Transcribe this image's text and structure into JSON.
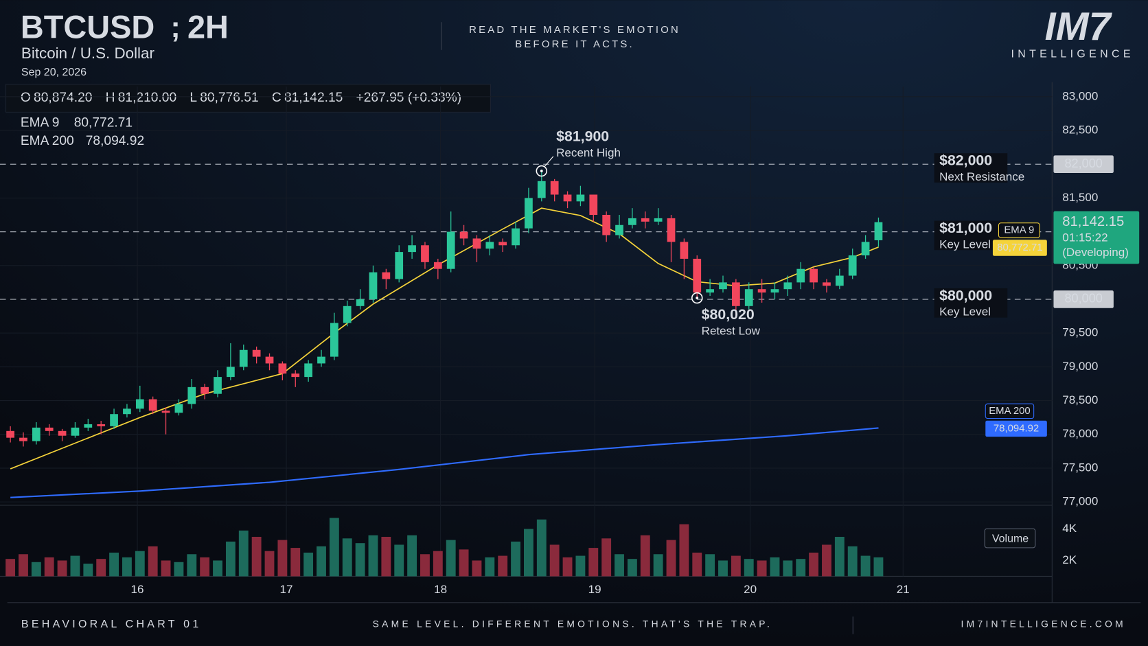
{
  "header": {
    "symbol": "BTCUSD",
    "separator": ";",
    "interval": "2H",
    "subtitle": "Bitcoin / U.S. Dollar",
    "date": "Sep 20, 2026",
    "tagline": [
      "READ THE MARKET'S EMOTION",
      "BEFORE IT ACTS."
    ],
    "logo": "IM7",
    "logo_sub": "INTELLIGENCE",
    "ohlc": [
      {
        "key": "O",
        "value": "80,874.20"
      },
      {
        "key": "H",
        "value": "81,210.00"
      },
      {
        "key": "L",
        "value": "80,776.51"
      },
      {
        "key": "C",
        "value": "81,142.15"
      }
    ],
    "change": "+267.95 (+0.33%)"
  },
  "chart_data": {
    "type": "candlestick",
    "up_color": "#2bc79a",
    "down_color": "#f2465c",
    "volume_up_color": "#1d6b5c",
    "volume_down_color": "#8a2a3c",
    "xlim": [
      -0.8,
      80.4
    ],
    "xticks": [
      {
        "value": 9.8,
        "label": "16"
      },
      {
        "value": 21.3,
        "label": "17"
      },
      {
        "value": 33.2,
        "label": "18"
      },
      {
        "value": 45.1,
        "label": "19"
      },
      {
        "value": 57.1,
        "label": "20"
      },
      {
        "value": 68.9,
        "label": "21"
      }
    ],
    "ylim": [
      76950,
      83150
    ],
    "yticks": [
      {
        "value": 83000,
        "label": "83,000"
      },
      {
        "value": 82500,
        "label": "82,500"
      },
      {
        "value": 81500,
        "label": "81,500"
      },
      {
        "value": 80500,
        "label": "80,500"
      },
      {
        "value": 79500,
        "label": "79,500"
      },
      {
        "value": 79000,
        "label": "79,000"
      },
      {
        "value": 78500,
        "label": "78,500"
      },
      {
        "value": 78000,
        "label": "78,000"
      },
      {
        "value": 77500,
        "label": "77,500"
      },
      {
        "value": 77000,
        "label": "77,000"
      }
    ],
    "grid": true,
    "open": [
      78050,
      77950,
      77900,
      78100,
      78050,
      77980,
      78100,
      78150,
      78120,
      78300,
      78380,
      78520,
      78350,
      78320,
      78450,
      78700,
      78600,
      78850,
      79000,
      79250,
      79150,
      79050,
      78900,
      78850,
      79050,
      79150,
      79650,
      79900,
      80000,
      80400,
      80300,
      80700,
      80800,
      80550,
      80450,
      81000,
      80900,
      80750,
      80850,
      80800,
      81050,
      81500,
      81750,
      81550,
      81450,
      81550,
      81250,
      80950,
      81100,
      81200,
      81150,
      81200,
      80850,
      80600,
      80100,
      80150,
      80250,
      79900,
      80150,
      80100,
      80150,
      80250,
      80450,
      80250,
      80200,
      80350,
      80650,
      80874.2
    ],
    "high": [
      78120,
      78030,
      78180,
      78150,
      78080,
      78180,
      78230,
      78200,
      78380,
      78450,
      78720,
      78560,
      78400,
      78520,
      78820,
      78750,
      78950,
      79350,
      79330,
      79300,
      79200,
      79080,
      78950,
      79100,
      79250,
      79800,
      79980,
      80150,
      80500,
      80450,
      80800,
      80950,
      80850,
      80600,
      81300,
      81100,
      80950,
      80950,
      80900,
      81150,
      81650,
      81900,
      81780,
      81600,
      81680,
      81550,
      81300,
      81250,
      81350,
      81300,
      81350,
      81250,
      80900,
      80650,
      80300,
      80350,
      80300,
      80250,
      80300,
      80250,
      80350,
      80550,
      80480,
      80300,
      80450,
      80750,
      80950,
      81210
    ],
    "low": [
      77880,
      77820,
      77850,
      77980,
      77900,
      77950,
      78050,
      78000,
      78080,
      78250,
      78330,
      78300,
      78000,
      78280,
      78380,
      78520,
      78550,
      78800,
      78950,
      79050,
      78950,
      78800,
      78700,
      78780,
      79000,
      79100,
      79600,
      79850,
      79950,
      80150,
      80250,
      80600,
      80450,
      80300,
      80400,
      80800,
      80550,
      80650,
      80700,
      80750,
      80980,
      81450,
      81450,
      81350,
      81380,
      81150,
      80850,
      80900,
      81050,
      81050,
      81100,
      80550,
      80300,
      80020,
      80050,
      80100,
      79750,
      79850,
      79950,
      80000,
      80050,
      80150,
      80150,
      80100,
      80150,
      80300,
      80600,
      80776.51
    ],
    "close": [
      77950,
      77900,
      78100,
      78050,
      77980,
      78100,
      78150,
      78120,
      78300,
      78380,
      78520,
      78350,
      78320,
      78450,
      78700,
      78600,
      78850,
      79000,
      79250,
      79150,
      79050,
      78900,
      78850,
      79050,
      79150,
      79650,
      79900,
      80000,
      80400,
      80300,
      80700,
      80800,
      80550,
      80450,
      81000,
      80900,
      80750,
      80850,
      80800,
      81050,
      81500,
      81750,
      81550,
      81450,
      81550,
      81250,
      80950,
      81100,
      81200,
      81150,
      81200,
      80850,
      80600,
      80100,
      80150,
      80250,
      79900,
      80150,
      80100,
      80150,
      80250,
      80450,
      80250,
      80200,
      80350,
      80650,
      80850,
      81142.15
    ],
    "volume": [
      2100,
      2400,
      1900,
      2200,
      2000,
      2300,
      1800,
      2100,
      2500,
      2200,
      2600,
      2900,
      2000,
      1900,
      2400,
      2200,
      2000,
      3200,
      3900,
      3500,
      2600,
      3300,
      2800,
      2500,
      2900,
      4700,
      3400,
      3100,
      3600,
      3500,
      3000,
      3600,
      2400,
      2600,
      3300,
      2700,
      2000,
      2200,
      2300,
      3200,
      4000,
      4600,
      3000,
      2200,
      2300,
      2800,
      3400,
      2400,
      2100,
      3600,
      2400,
      3300,
      4300,
      2500,
      2400,
      2000,
      2300,
      2100,
      2000,
      2200,
      2000,
      2100,
      2500,
      3000,
      3500,
      2900,
      2300,
      2200
    ],
    "volume_lim": [
      1000,
      5500
    ],
    "volume_ticks": [
      {
        "value": 4000,
        "label": "4K"
      },
      {
        "value": 2000,
        "label": "2K"
      }
    ],
    "volume_label": "Volume",
    "series": [
      {
        "name": "EMA 9",
        "color": "#f5d33a",
        "last_label": "80,772.71",
        "x": [
          0,
          5,
          10,
          15,
          21,
          25,
          28,
          33,
          38,
          41,
          44,
          47,
          50,
          53,
          56,
          59,
          62,
          65,
          67
        ],
        "values": [
          77490,
          77870,
          78250,
          78600,
          78900,
          79500,
          79930,
          80510,
          81040,
          81350,
          81240,
          80970,
          80530,
          80260,
          80200,
          80240,
          80480,
          80620,
          80772.71
        ]
      },
      {
        "name": "EMA 200",
        "color": "#2f6bff",
        "last_label": "78,094.92",
        "x": [
          0,
          10,
          20,
          30,
          40,
          50,
          60,
          67
        ],
        "values": [
          77065,
          77160,
          77290,
          77480,
          77700,
          77850,
          77980,
          78094.92
        ]
      }
    ],
    "levels": [
      {
        "value": 82000,
        "label": "$82,000",
        "note": "Next Resistance",
        "badge": "82,000"
      },
      {
        "value": 81000,
        "label": "$81,000",
        "note": "Key Level"
      },
      {
        "value": 80000,
        "label": "$80,000",
        "note": "Key Level",
        "badge": "80,000"
      }
    ],
    "price_badge": {
      "value": 81142.15,
      "label": "81,142.15",
      "countdown": "01:15:22",
      "status": "(Developing)"
    },
    "annotations": [
      {
        "x": 41,
        "value": 81900,
        "label": "$81,900",
        "note": "Recent High"
      },
      {
        "x": 53,
        "value": 80020,
        "label": "$80,020",
        "note": "Retest Low"
      }
    ]
  },
  "footer": {
    "left": "BEHAVIORAL CHART 01",
    "center": "SAME LEVEL. DIFFERENT EMOTIONS. THAT'S THE TRAP.",
    "right": "IM7INTELLIGENCE.COM"
  }
}
